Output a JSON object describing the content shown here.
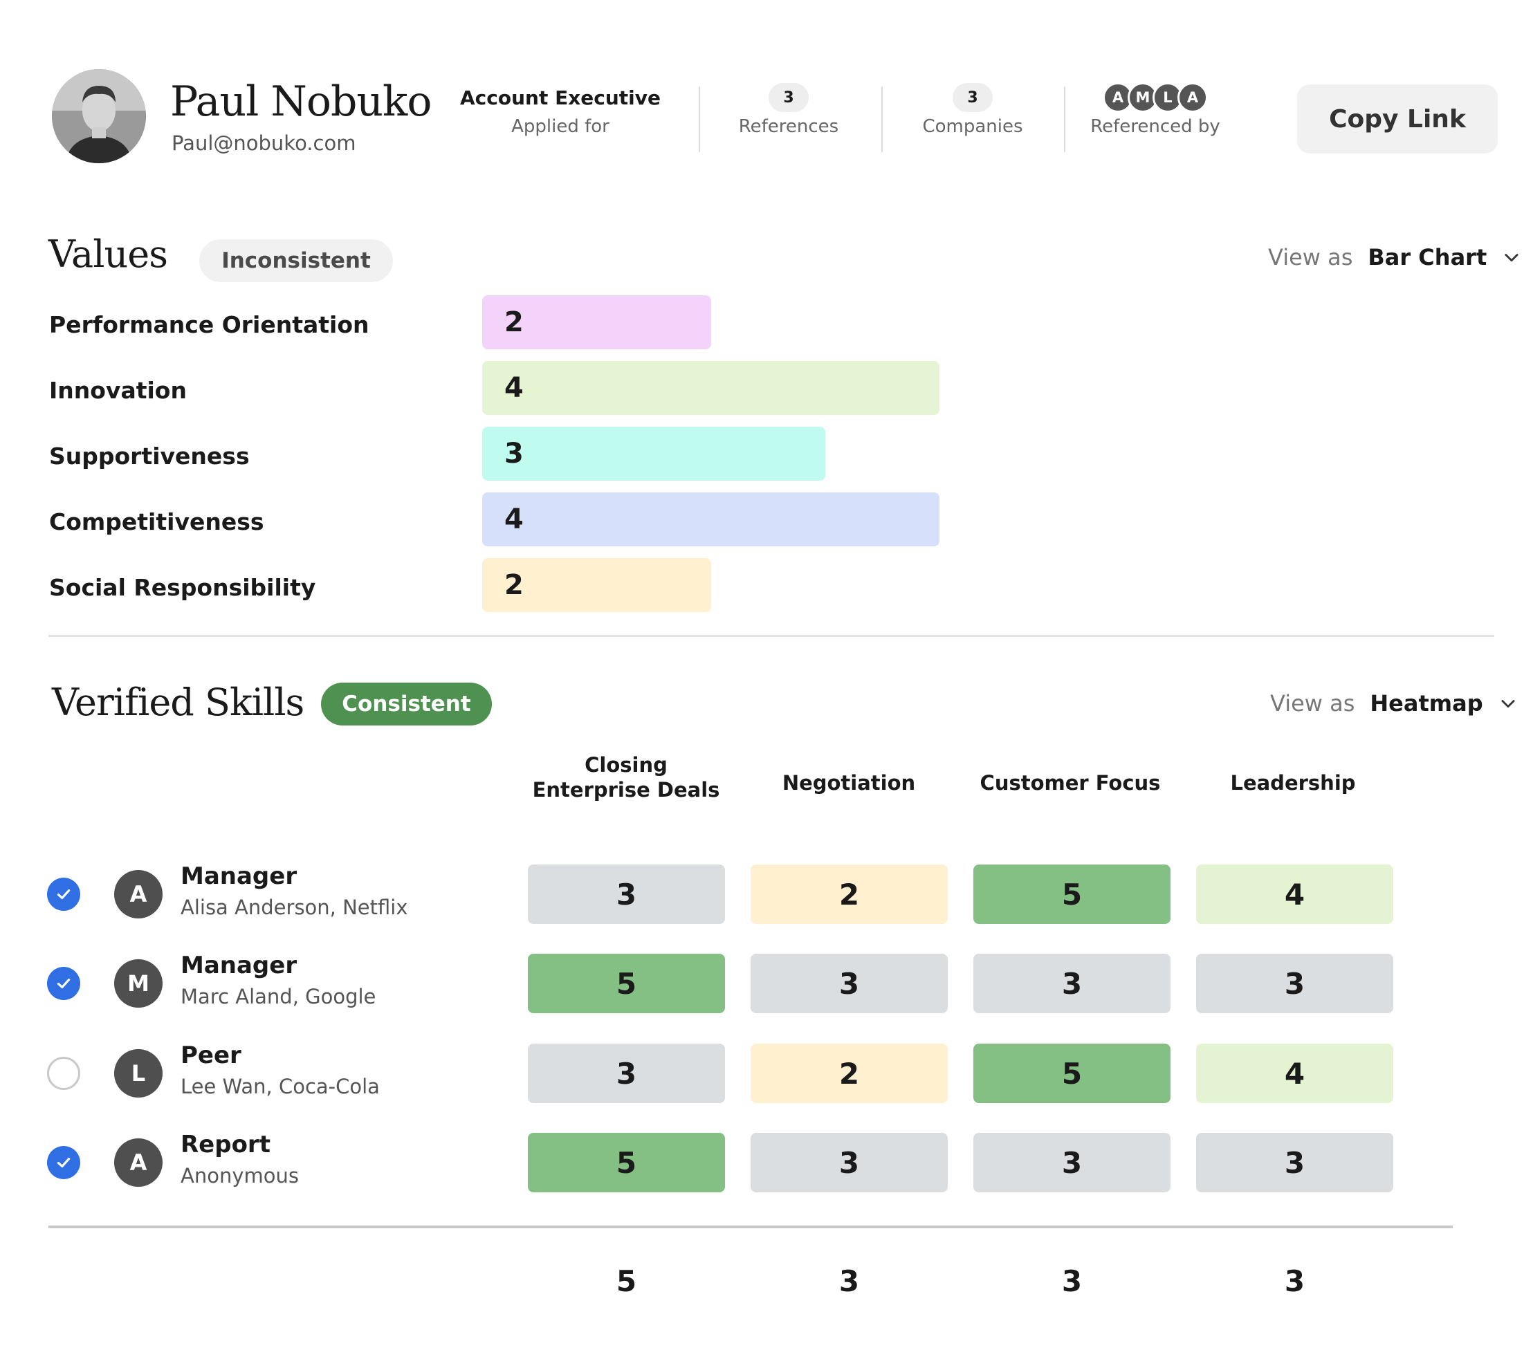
{
  "profile": {
    "name": "Paul Nobuko",
    "email": "Paul@nobuko.com",
    "position": "Account Executive",
    "position_label": "Applied for",
    "references_count": "3",
    "references_label": "References",
    "companies_count": "3",
    "companies_label": "Companies",
    "referenced_by_initials": [
      "A",
      "M",
      "L",
      "A"
    ],
    "referenced_by_label": "Referenced by",
    "copy_link_label": "Copy Link"
  },
  "values": {
    "title": "Values",
    "badge": "Inconsistent",
    "view_as_label": "View as",
    "view_as_value": "Bar Chart",
    "max_score": 5,
    "items": [
      {
        "label": "Performance Orientation",
        "score": "2",
        "color": "#f4d3fb"
      },
      {
        "label": "Innovation",
        "score": "4",
        "color": "#e5f4d3"
      },
      {
        "label": "Supportiveness",
        "score": "3",
        "color": "#c0fbf0"
      },
      {
        "label": "Competitiveness",
        "score": "4",
        "color": "#d7e0fb"
      },
      {
        "label": "Social Responsibility",
        "score": "2",
        "color": "#fff0d0"
      }
    ]
  },
  "skills": {
    "title": "Verified Skills",
    "badge": "Consistent",
    "badge_color": "#4e9150",
    "view_as_label": "View as",
    "view_as_value": "Heatmap",
    "columns": [
      {
        "line1": "Closing",
        "line2": "Enterprise Deals"
      },
      {
        "line1": "Negotiation",
        "line2": ""
      },
      {
        "line1": "Customer Focus",
        "line2": ""
      },
      {
        "line1": "Leadership",
        "line2": ""
      }
    ],
    "heat_colors": {
      "2": "#fff0d0",
      "3": "#dadee1",
      "4": "#e4f4d3",
      "5": "#84c084"
    },
    "rows": [
      {
        "checked": true,
        "initial": "A",
        "role": "Manager",
        "person": "Alisa Anderson, Netflix",
        "scores": [
          "3",
          "2",
          "5",
          "4"
        ]
      },
      {
        "checked": true,
        "initial": "M",
        "role": "Manager",
        "person": "Marc Aland, Google",
        "scores": [
          "5",
          "3",
          "3",
          "3"
        ]
      },
      {
        "checked": false,
        "initial": "L",
        "role": "Peer",
        "person": "Lee Wan, Coca-Cola",
        "scores": [
          "3",
          "2",
          "5",
          "4"
        ]
      },
      {
        "checked": true,
        "initial": "A",
        "role": "Report",
        "person": "Anonymous",
        "scores": [
          "5",
          "3",
          "3",
          "3"
        ]
      }
    ],
    "totals": [
      "5",
      "3",
      "3",
      "3"
    ]
  }
}
